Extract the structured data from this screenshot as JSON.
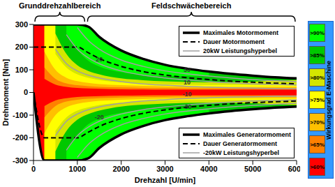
{
  "chart_data": {
    "type": "area",
    "header": [
      {
        "label": "Grunddrehzahlbereich",
        "from": 0,
        "to": 1200
      },
      {
        "label": "Feldschwächebereich",
        "from": 1200,
        "to": 6000
      }
    ],
    "x_label": "Drehzahl [U/min]",
    "y_label": "Drehmoment [Nm]",
    "x": [
      0,
      250,
      500,
      750,
      1000,
      1250,
      1500,
      2000,
      2500,
      3000,
      3500,
      4000,
      4500,
      5000,
      5500,
      6000
    ],
    "xlim": [
      0,
      6000
    ],
    "xticks": [
      0,
      1000,
      2000,
      3000,
      4000,
      5000,
      6000
    ],
    "ylim": [
      -300,
      300
    ],
    "yticks": [
      -300,
      -200,
      -100,
      0,
      100,
      200,
      300
    ],
    "grid": false,
    "legend": "upper right",
    "series": [
      {
        "name": "Maximales Motormoment",
        "color": "#000000",
        "line_style": "thick",
        "values": [
          300,
          300,
          300,
          300,
          300,
          290,
          245,
          185,
          148,
          122,
          105,
          92,
          82,
          74,
          67,
          62
        ]
      },
      {
        "name": "Dauer Motormoment",
        "color": "#000000",
        "line_style": "dashed",
        "values": [
          200,
          200,
          200,
          200,
          200,
          175,
          150,
          115,
          92,
          77,
          65,
          57,
          50,
          45,
          41,
          38
        ]
      },
      {
        "name": "20kW Leistungshyperbel",
        "label": "20",
        "color": "#a0a0a0",
        "line_style": "solid",
        "values": [
          null,
          null,
          null,
          255,
          191,
          153,
          127,
          95,
          76,
          64,
          55,
          48,
          42,
          38,
          35,
          32
        ]
      },
      {
        "name": "Maximales Generatormoment",
        "color": "#000000",
        "line_style": "thick",
        "values": [
          0,
          -300,
          -300,
          -300,
          -300,
          -290,
          -245,
          -185,
          -148,
          -122,
          -105,
          -92,
          -82,
          -74,
          -67,
          -62
        ]
      },
      {
        "name": "Dauer Generatormoment",
        "color": "#000000",
        "line_style": "dashed",
        "values": [
          0,
          -200,
          -200,
          -200,
          -200,
          -175,
          -150,
          -115,
          -92,
          -77,
          -65,
          -57,
          -50,
          -45,
          -41,
          -38
        ]
      },
      {
        "name": "-20kW Leistungshyperbel",
        "label": "-20",
        "color": "#a0a0a0",
        "line_style": "solid",
        "values": [
          null,
          null,
          null,
          -255,
          -191,
          -153,
          -127,
          -95,
          -76,
          -64,
          -55,
          -48,
          -42,
          -38,
          -35,
          -32
        ]
      }
    ],
    "power_lines": [
      {
        "label": "10",
        "color": "#a0a0a0",
        "values": [
          null,
          null,
          191,
          127,
          95,
          76,
          64,
          48,
          38,
          32,
          27,
          24,
          21,
          19,
          17,
          16
        ]
      },
      {
        "label": "30",
        "color": "#a0a0a0",
        "values": [
          null,
          null,
          null,
          null,
          286,
          229,
          191,
          143,
          115,
          95,
          82,
          72,
          64,
          57,
          52,
          48
        ]
      },
      {
        "label": "-10",
        "color": "#a0a0a0",
        "values": [
          null,
          null,
          -191,
          -127,
          -95,
          -76,
          -64,
          -48,
          -38,
          -32,
          -27,
          -24,
          -21,
          -19,
          -17,
          -16
        ]
      },
      {
        "label": "-30",
        "color": "#a0a0a0",
        "values": [
          null,
          null,
          null,
          null,
          -286,
          -229,
          -191,
          -143,
          -115,
          -95,
          -82,
          -72,
          -64,
          -57,
          -52,
          -48
        ]
      }
    ],
    "efficiency": {
      "title": "Wirkungsgrad E-Maschine",
      "levels": [
        {
          "label": ">90%",
          "color": "#00ff00",
          "motor": [
            null,
            null,
            null,
            260,
            190,
            140,
            115,
            90,
            78,
            72,
            72,
            75,
            null,
            null,
            null,
            null
          ],
          "generator": [
            null,
            null,
            null,
            -260,
            -190,
            -140,
            -115,
            -90,
            -78,
            -72,
            -72,
            -75,
            null,
            null,
            null,
            null
          ]
        },
        {
          "label": ">85%",
          "color": "#00c800",
          "motor": [
            null,
            null,
            260,
            170,
            120,
            95,
            80,
            62,
            54,
            49,
            46,
            45,
            46,
            48,
            52,
            55
          ],
          "generator": [
            null,
            null,
            -260,
            -170,
            -120,
            -95,
            -80,
            -62,
            -54,
            -49,
            -46,
            -45,
            -46,
            -48,
            -52,
            -55
          ]
        },
        {
          "label": ">80%",
          "color": "#d4e600",
          "motor": [
            null,
            null,
            170,
            110,
            80,
            65,
            55,
            45,
            40,
            36,
            34,
            33,
            33,
            33,
            34,
            35
          ],
          "generator": [
            null,
            null,
            -170,
            -110,
            -80,
            -65,
            -55,
            -45,
            -40,
            -36,
            -34,
            -33,
            -33,
            -33,
            -34,
            -35
          ]
        },
        {
          "label": ">75%",
          "color": "#ffff00",
          "motor": [
            null,
            180,
            100,
            65,
            50,
            42,
            37,
            32,
            29,
            27,
            26,
            25,
            25,
            25,
            25,
            25
          ],
          "generator": [
            null,
            -180,
            -100,
            -65,
            -50,
            -42,
            -37,
            -32,
            -29,
            -27,
            -26,
            -25,
            -25,
            -25,
            -25,
            -25
          ]
        },
        {
          "label": ">70%",
          "color": "#ffc000",
          "motor": [
            null,
            110,
            60,
            40,
            32,
            28,
            25,
            22,
            20,
            19,
            18,
            18,
            18,
            18,
            18,
            18
          ],
          "generator": [
            null,
            -110,
            -60,
            -40,
            -32,
            -28,
            -25,
            -22,
            -20,
            -19,
            -18,
            -18,
            -18,
            -18,
            -18,
            -18
          ]
        },
        {
          "label": ">65%",
          "color": "#ff8000",
          "motor": [
            null,
            60,
            35,
            25,
            20,
            18,
            16,
            14,
            13,
            12,
            12,
            12,
            12,
            12,
            12,
            12
          ],
          "generator": [
            null,
            -60,
            -35,
            -25,
            -20,
            -18,
            -16,
            -14,
            -13,
            -12,
            -12,
            -12,
            -12,
            -12,
            -12,
            -12
          ]
        },
        {
          "label": ">60%",
          "color": "#ff0000"
        }
      ]
    }
  }
}
